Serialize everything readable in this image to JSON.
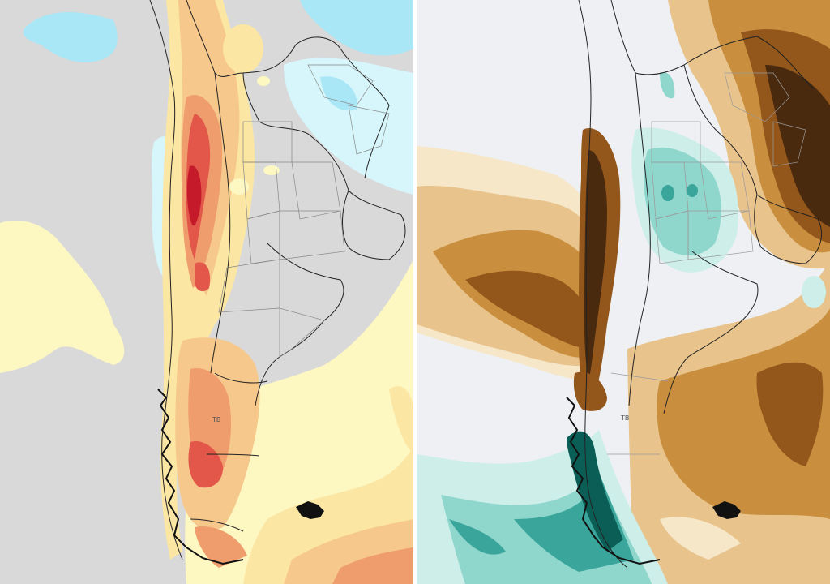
{
  "map": {
    "panels": [
      {
        "id": "left",
        "field": "temperature-anomaly",
        "palette": {
          "neutral": "#d9d9d9",
          "cool_light": "#d6f6fb",
          "cool": "#a9e6f6",
          "warm_0": "#fdf7c2",
          "warm_1": "#fbe6a3",
          "warm_2": "#f6c88c",
          "warm_3": "#ef9d6d",
          "warm_4": "#e2574a",
          "warm_5": "#c41a2a"
        }
      },
      {
        "id": "right",
        "field": "precipitation-anomaly",
        "palette": {
          "neutral": "#eef0f4",
          "dry_0": "#f6e7c8",
          "dry_1": "#e8c38c",
          "dry_2": "#c98f3e",
          "dry_3": "#93561b",
          "dry_4": "#4a2a0f",
          "wet_0": "#cdeee9",
          "wet_1": "#8fd6cd",
          "wet_2": "#3aa59a",
          "wet_3": "#0b5e56"
        }
      }
    ],
    "islands": [
      "malvinas-islands"
    ],
    "label": "TB"
  }
}
